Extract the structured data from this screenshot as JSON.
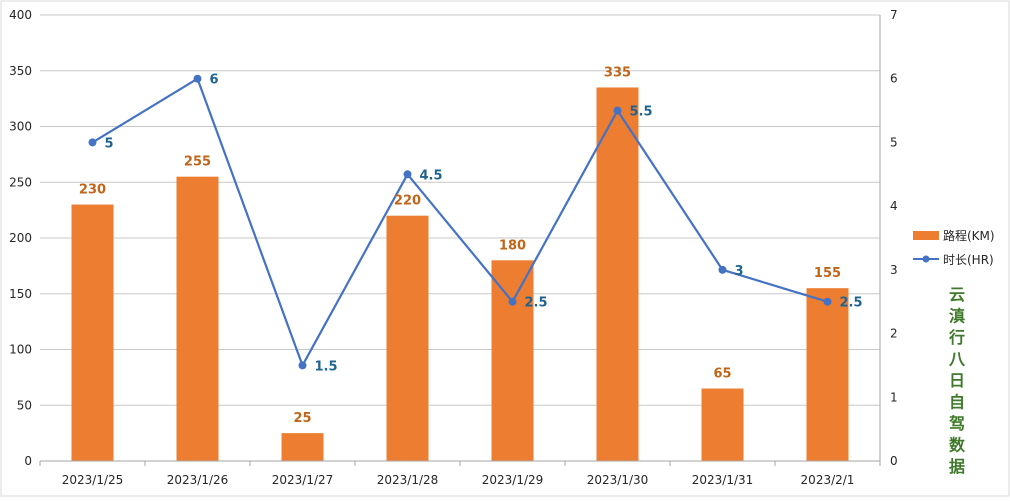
{
  "chart_data": {
    "type": "bar+line",
    "categories": [
      "2023/1/25",
      "2023/1/26",
      "2023/1/27",
      "2023/1/28",
      "2023/1/29",
      "2023/1/30",
      "2023/1/31",
      "2023/2/1"
    ],
    "series": [
      {
        "name": "路程(KM)",
        "type": "bar",
        "axis": "left",
        "color": "#ED7D31",
        "label_color": "#C0651A",
        "values": [
          230,
          255,
          25,
          220,
          180,
          335,
          65,
          155
        ]
      },
      {
        "name": "时长(HR)",
        "type": "line",
        "axis": "right",
        "color": "#4472C4",
        "label_color": "#1F6391",
        "values": [
          5,
          6,
          1.5,
          4.5,
          2.5,
          5.5,
          3,
          2.5
        ]
      }
    ],
    "y_left": {
      "min": 0,
      "max": 400,
      "ticks": [
        0,
        50,
        100,
        150,
        200,
        250,
        300,
        350,
        400
      ]
    },
    "y_right": {
      "min": 0,
      "max": 7,
      "ticks": [
        0,
        1,
        2,
        3,
        4,
        5,
        6,
        7
      ]
    },
    "grid": true,
    "legend_position": "right",
    "side_title": "云滇行八日自驾数据",
    "side_title_color": "#3F7A2A"
  }
}
